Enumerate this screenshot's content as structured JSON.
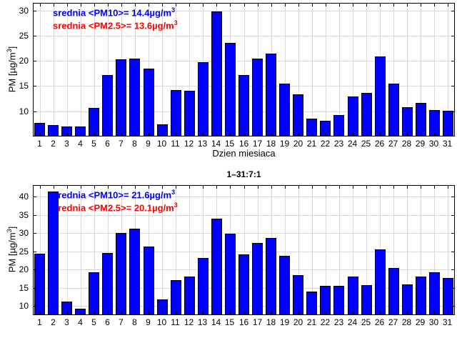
{
  "figure": {
    "background": "#ffffff",
    "bar_color": "#0000ff",
    "bar_edge_color": "#000000",
    "grid_color": "#d9d9d9",
    "axis_color": "#000000",
    "text_color": "#000000"
  },
  "chart_data": [
    {
      "type": "bar",
      "title": "",
      "xlabel": "Dzien miesiaca",
      "ylabel_pre": "PM [µg/m",
      "ylabel_sup": "3",
      "ylabel_post": "]",
      "categories": [
        "1",
        "2",
        "3",
        "4",
        "5",
        "6",
        "7",
        "8",
        "9",
        "10",
        "11",
        "12",
        "13",
        "14",
        "15",
        "16",
        "17",
        "18",
        "19",
        "20",
        "21",
        "22",
        "23",
        "24",
        "25",
        "26",
        "27",
        "28",
        "29",
        "30",
        "31"
      ],
      "values": [
        7.7,
        7.2,
        7.0,
        7.0,
        10.6,
        17.2,
        20.3,
        20.5,
        18.4,
        7.4,
        14.2,
        14.0,
        19.8,
        29.8,
        23.6,
        17.2,
        20.4,
        21.5,
        15.5,
        13.4,
        8.6,
        8.1,
        9.3,
        13.0,
        13.6,
        20.9,
        15.5,
        10.8,
        11.7,
        10.3,
        10.1
      ],
      "ylim": [
        5,
        31.5
      ],
      "yticks": [
        10,
        15,
        20,
        25,
        30
      ],
      "grid": true,
      "bar_width_fraction": 0.8,
      "means": {
        "pm10": 14.4,
        "pm25": 13.6
      },
      "legend": [
        {
          "pre": "srednia <PM10>= 14.4µg/m",
          "sup": "3",
          "color": "#0000ff"
        },
        {
          "pre": "srednia <PM2.5>= 13.6µg/m",
          "sup": "3",
          "color": "#ff0000"
        }
      ]
    },
    {
      "type": "bar",
      "title": "1–31:7:1",
      "xlabel": "",
      "ylabel_pre": "PM [µg/m",
      "ylabel_sup": "3",
      "ylabel_post": "]",
      "categories": [
        "1",
        "2",
        "3",
        "4",
        "5",
        "6",
        "7",
        "8",
        "9",
        "10",
        "11",
        "12",
        "13",
        "14",
        "15",
        "16",
        "17",
        "18",
        "19",
        "20",
        "21",
        "22",
        "23",
        "24",
        "25",
        "26",
        "27",
        "28",
        "29",
        "30",
        "31"
      ],
      "values": [
        24.3,
        41.5,
        11.3,
        9.3,
        19.2,
        24.5,
        30.0,
        31.3,
        26.4,
        11.9,
        17.1,
        18.1,
        23.2,
        33.9,
        29.9,
        24.2,
        27.3,
        28.7,
        23.8,
        18.5,
        13.9,
        15.5,
        15.6,
        18.0,
        15.8,
        25.5,
        20.4,
        16.0,
        18.1,
        19.3,
        17.7
      ],
      "ylim": [
        7.5,
        43.2
      ],
      "yticks": [
        10,
        15,
        20,
        25,
        30,
        35,
        40
      ],
      "grid": true,
      "bar_width_fraction": 0.8,
      "means": {
        "pm10": 21.6,
        "pm25": 20.1
      },
      "legend": [
        {
          "pre": "srednia <PM10>= 21.6µg/m",
          "sup": "3",
          "color": "#0000ff"
        },
        {
          "pre": "srednia <PM2.5>= 20.1µg/m",
          "sup": "3",
          "color": "#ff0000"
        }
      ]
    }
  ]
}
